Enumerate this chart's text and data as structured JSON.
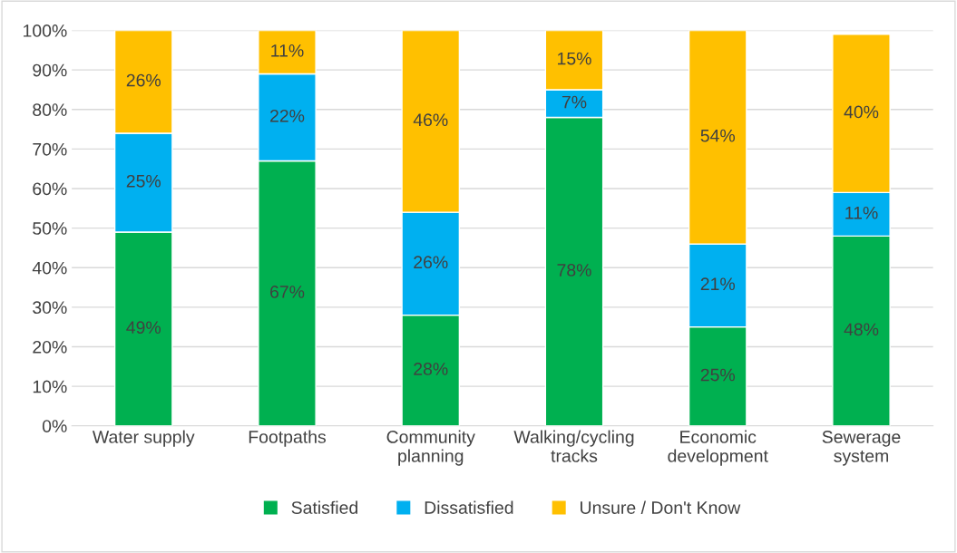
{
  "chart_data": {
    "type": "bar",
    "stacked": true,
    "categories": [
      "Water supply",
      "Footpaths",
      "Community\nplanning",
      "Walking/cycling\ntracks",
      "Economic\ndevelopment",
      "Sewerage\nsystem"
    ],
    "series": [
      {
        "name": "Satisfied",
        "color": "#00b050",
        "values": [
          49,
          67,
          28,
          78,
          25,
          48
        ],
        "value_labels": [
          "49%",
          "67%",
          "28%",
          "78%",
          "25%",
          "48%"
        ]
      },
      {
        "name": "Dissatisfied",
        "color": "#00b0f0",
        "values": [
          25,
          22,
          26,
          7,
          21,
          11
        ],
        "value_labels": [
          "25%",
          "22%",
          "26%",
          "7%",
          "21%",
          "11%"
        ]
      },
      {
        "name": "Unsure / Don't Know",
        "color": "#ffc000",
        "values": [
          26,
          11,
          46,
          15,
          54,
          40
        ],
        "value_labels": [
          "26%",
          "11%",
          "46%",
          "15%",
          "54%",
          "40%"
        ]
      }
    ],
    "ylim": [
      0,
      100
    ],
    "yticks": [
      {
        "value": 0,
        "label": "0%"
      },
      {
        "value": 10,
        "label": "10%"
      },
      {
        "value": 20,
        "label": "20%"
      },
      {
        "value": 30,
        "label": "30%"
      },
      {
        "value": 40,
        "label": "40%"
      },
      {
        "value": 50,
        "label": "50%"
      },
      {
        "value": 60,
        "label": "60%"
      },
      {
        "value": 70,
        "label": "70%"
      },
      {
        "value": 80,
        "label": "80%"
      },
      {
        "value": 90,
        "label": "90%"
      },
      {
        "value": 100,
        "label": "100%"
      }
    ],
    "grid": "y",
    "legend": "bottom"
  }
}
